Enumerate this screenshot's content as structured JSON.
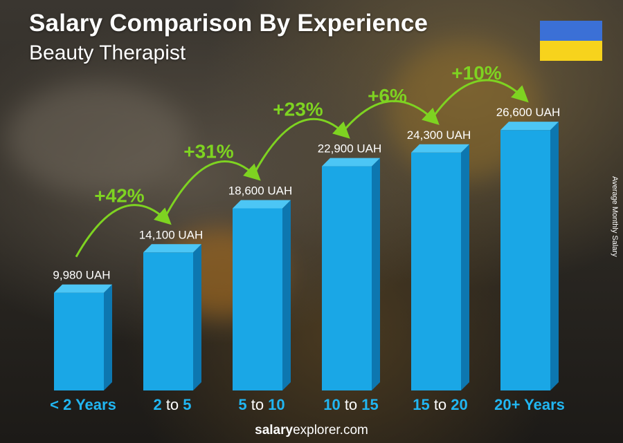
{
  "header": {
    "title": "Salary Comparison By Experience",
    "subtitle": "Beauty Therapist"
  },
  "flag": {
    "top_color": "#3b70d6",
    "bottom_color": "#f7d31c"
  },
  "side_label": "Average Monthly Salary",
  "footer": {
    "brand_bold": "salary",
    "brand_rest": "explorer.com"
  },
  "colors": {
    "bar_front": "#1aa7e6",
    "bar_side": "#0d77b0",
    "bar_top": "#4cc6f5",
    "growth": "#7ed321",
    "tick_accent": "#21b6f2"
  },
  "chart_data": {
    "type": "bar",
    "categories": [
      "< 2 Years",
      "2 to 5",
      "5 to 10",
      "10 to 15",
      "15 to 20",
      "20+ Years"
    ],
    "category_parts": [
      [
        "< 2 Years"
      ],
      [
        "2",
        " to ",
        "5"
      ],
      [
        "5",
        " to ",
        "10"
      ],
      [
        "10",
        " to ",
        "15"
      ],
      [
        "15",
        " to ",
        "20"
      ],
      [
        "20+ Years"
      ]
    ],
    "values": [
      9980,
      14100,
      18600,
      22900,
      24300,
      26600
    ],
    "value_labels": [
      "9,980 UAH",
      "14,100 UAH",
      "18,600 UAH",
      "22,900 UAH",
      "24,300 UAH",
      "26,600 UAH"
    ],
    "growth_labels": [
      "+42%",
      "+31%",
      "+23%",
      "+6%",
      "+10%"
    ],
    "ylabel": "Average Monthly Salary",
    "unit": "UAH",
    "ylim": [
      0,
      30000
    ]
  }
}
